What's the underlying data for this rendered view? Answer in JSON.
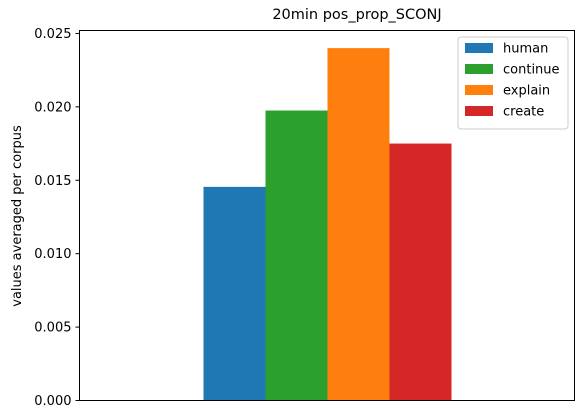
{
  "chart_data": {
    "type": "bar",
    "title": "20min pos_prop_SCONJ",
    "xlabel": "",
    "ylabel": "values averaged per corpus",
    "ylim": [
      0,
      0.0252
    ],
    "yticks": [
      0.0,
      0.005,
      0.01,
      0.015,
      0.02,
      0.025
    ],
    "ytick_labels": [
      "0.000",
      "0.005",
      "0.010",
      "0.015",
      "0.020",
      "0.025"
    ],
    "grid": false,
    "legend_position": "top-right",
    "series": [
      {
        "name": "human",
        "value": 0.01455,
        "color": "#1f77b4"
      },
      {
        "name": "continue",
        "value": 0.01975,
        "color": "#2ca02c"
      },
      {
        "name": "explain",
        "value": 0.024,
        "color": "#ff7f0e"
      },
      {
        "name": "create",
        "value": 0.0175,
        "color": "#d62728"
      }
    ]
  }
}
